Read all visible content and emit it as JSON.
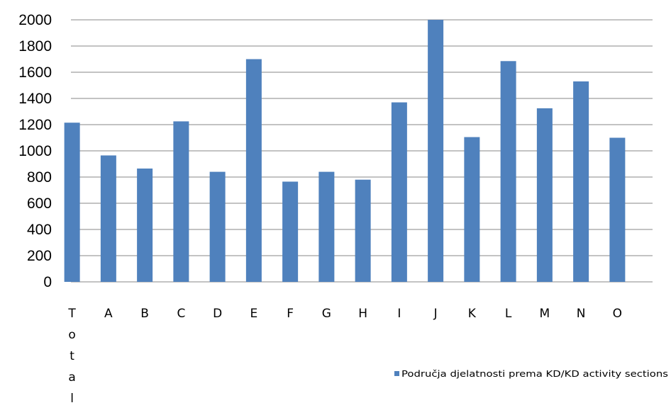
{
  "chart_data": {
    "type": "bar",
    "categories": [
      "Total",
      "A",
      "B",
      "C",
      "D",
      "E",
      "F",
      "G",
      "H",
      "I",
      "J",
      "K",
      "L",
      "M",
      "N",
      "O"
    ],
    "series": [
      {
        "name": "Područja djelatnosti prema KD/KD activity sections",
        "values": [
          1215,
          965,
          865,
          1225,
          840,
          1700,
          765,
          840,
          780,
          1370,
          2000,
          1105,
          1685,
          1325,
          1530,
          1100
        ],
        "color": "#4f81bd"
      }
    ],
    "title": "",
    "xlabel": "",
    "ylabel": "",
    "ylim": [
      0,
      2000
    ],
    "yticks": [
      "0",
      "200",
      "400",
      "600",
      "800",
      "1000",
      "1200",
      "1400",
      "1600",
      "1800",
      "2000"
    ],
    "grid": true,
    "legend_position": "right",
    "gridline_color": "#878787"
  }
}
